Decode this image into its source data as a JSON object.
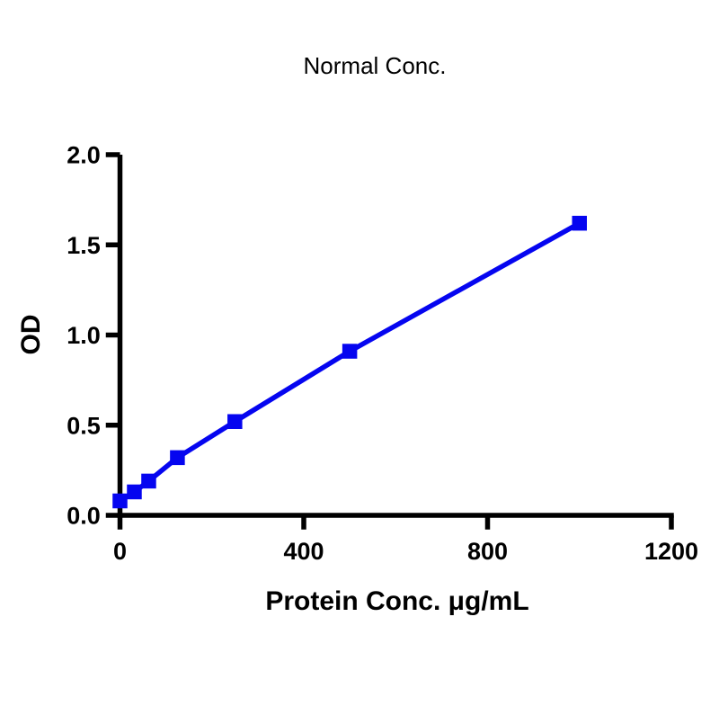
{
  "chart_data": {
    "type": "line",
    "title": "Normal Conc.",
    "xlabel": "Protein Conc. μg/mL",
    "ylabel": "OD",
    "xlim": [
      0,
      1200
    ],
    "ylim": [
      0,
      2.0
    ],
    "xticks": {
      "values": [
        0,
        400,
        800,
        1200
      ],
      "labels": [
        "0",
        "400",
        "800",
        "1200"
      ]
    },
    "yticks": {
      "values": [
        0,
        0.5,
        1.0,
        1.5,
        2.0
      ],
      "labels": [
        "0.0",
        "0.5",
        "1.0",
        "1.5",
        "2.0"
      ]
    },
    "grid": false,
    "legend": "none",
    "axis_color": "#000000",
    "background_color": "#FFFFFF",
    "series": [
      {
        "name": "Normal Conc.",
        "marker": "filled-square",
        "line_color": "#0505F0",
        "marker_color": "#0505F0",
        "points": [
          {
            "x": 0,
            "y": 0.08
          },
          {
            "x": 31.25,
            "y": 0.13
          },
          {
            "x": 62.5,
            "y": 0.19
          },
          {
            "x": 125,
            "y": 0.32
          },
          {
            "x": 250,
            "y": 0.52
          },
          {
            "x": 500,
            "y": 0.91
          },
          {
            "x": 1000,
            "y": 1.62
          }
        ]
      }
    ]
  }
}
